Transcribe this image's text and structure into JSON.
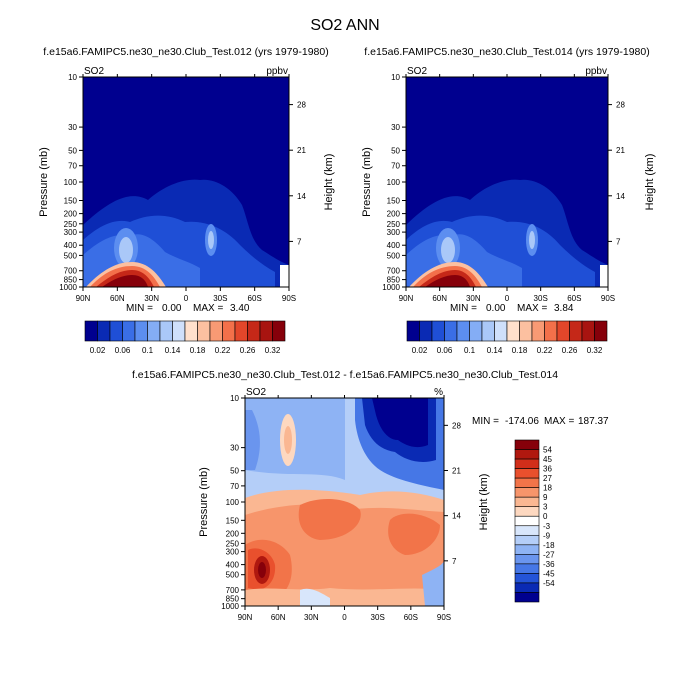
{
  "figure": {
    "title": "SO2 ANN"
  },
  "chart_data": [
    {
      "type": "heatmap",
      "title": "f.e15a6.FAMIPC5.ne30_ne30.Club_Test.012 (yrs 1979-1980)",
      "left_label": "SO2",
      "right_label": "ppbv",
      "xlabel": "",
      "ylabel": "Pressure (mb)",
      "ylabel_right": "Height (km)",
      "xticks": [
        "90N",
        "60N",
        "30N",
        "0",
        "30S",
        "60S",
        "90S"
      ],
      "yticks": [
        "10",
        "30",
        "50",
        "70",
        "100",
        "150",
        "200",
        "250",
        "300",
        "400",
        "500",
        "700",
        "850",
        "1000"
      ],
      "yticks_right": [
        "28",
        "21",
        "14",
        "7"
      ],
      "stats": {
        "min_label": "MIN =",
        "min": "0.00",
        "max_label": "MAX =",
        "max": "3.40"
      },
      "colorbar": {
        "orientation": "horizontal",
        "labels": [
          "0.02",
          "0.06",
          "0.1",
          "0.14",
          "0.18",
          "0.22",
          "0.26",
          "0.32"
        ],
        "colors": [
          "#00008f",
          "#0a2ab4",
          "#1f4fd6",
          "#3a6ee6",
          "#5c8ef0",
          "#84adf5",
          "#aac8f8",
          "#cfe0fb",
          "#ffe0cc",
          "#fcc0a0",
          "#f89a74",
          "#f3704a",
          "#e2462a",
          "#c52818",
          "#a81410",
          "#86000a"
        ]
      }
    },
    {
      "type": "heatmap",
      "title": "f.e15a6.FAMIPC5.ne30_ne30.Club_Test.014 (yrs 1979-1980)",
      "left_label": "SO2",
      "right_label": "ppbv",
      "xlabel": "",
      "ylabel": "Pressure (mb)",
      "ylabel_right": "Height (km)",
      "xticks": [
        "90N",
        "60N",
        "30N",
        "0",
        "30S",
        "60S",
        "90S"
      ],
      "yticks": [
        "10",
        "30",
        "50",
        "70",
        "100",
        "150",
        "200",
        "250",
        "300",
        "400",
        "500",
        "700",
        "850",
        "1000"
      ],
      "yticks_right": [
        "28",
        "21",
        "14",
        "7"
      ],
      "stats": {
        "min_label": "MIN =",
        "min": "0.00",
        "max_label": "MAX =",
        "max": "3.84"
      },
      "colorbar": {
        "orientation": "horizontal",
        "labels": [
          "0.02",
          "0.06",
          "0.1",
          "0.14",
          "0.18",
          "0.22",
          "0.26",
          "0.32"
        ],
        "colors": [
          "#00008f",
          "#0a2ab4",
          "#1f4fd6",
          "#3a6ee6",
          "#5c8ef0",
          "#84adf5",
          "#aac8f8",
          "#cfe0fb",
          "#ffe0cc",
          "#fcc0a0",
          "#f89a74",
          "#f3704a",
          "#e2462a",
          "#c52818",
          "#a81410",
          "#86000a"
        ]
      }
    },
    {
      "type": "heatmap",
      "title": "f.e15a6.FAMIPC5.ne30_ne30.Club_Test.012 - f.e15a6.FAMIPC5.ne30_ne30.Club_Test.014",
      "left_label": "SO2",
      "right_label": "%",
      "xlabel": "",
      "ylabel": "Pressure (mb)",
      "ylabel_right": "Height (km)",
      "xticks": [
        "90N",
        "60N",
        "30N",
        "0",
        "30S",
        "60S",
        "90S"
      ],
      "yticks": [
        "10",
        "30",
        "50",
        "70",
        "100",
        "150",
        "200",
        "250",
        "300",
        "400",
        "500",
        "700",
        "850",
        "1000"
      ],
      "yticks_right": [
        "28",
        "21",
        "14",
        "7"
      ],
      "stats": {
        "min_label": "MIN =",
        "min": "-174.06",
        "max_label": "MAX =",
        "max": "187.37"
      },
      "colorbar": {
        "orientation": "vertical",
        "labels": [
          "54",
          "45",
          "36",
          "27",
          "18",
          "9",
          "3",
          "0",
          "-3",
          "-9",
          "-18",
          "-27",
          "-36",
          "-45",
          "-54"
        ],
        "colors": [
          "#86000a",
          "#b0180f",
          "#d12e1a",
          "#e9502d",
          "#f27449",
          "#f7956b",
          "#fab792",
          "#fdd8c0",
          "#ffffff",
          "#d8e6fb",
          "#b4cef8",
          "#8eb3f4",
          "#6a95ee",
          "#4677e6",
          "#2454d8",
          "#0a2ab4",
          "#00008f"
        ]
      }
    }
  ]
}
